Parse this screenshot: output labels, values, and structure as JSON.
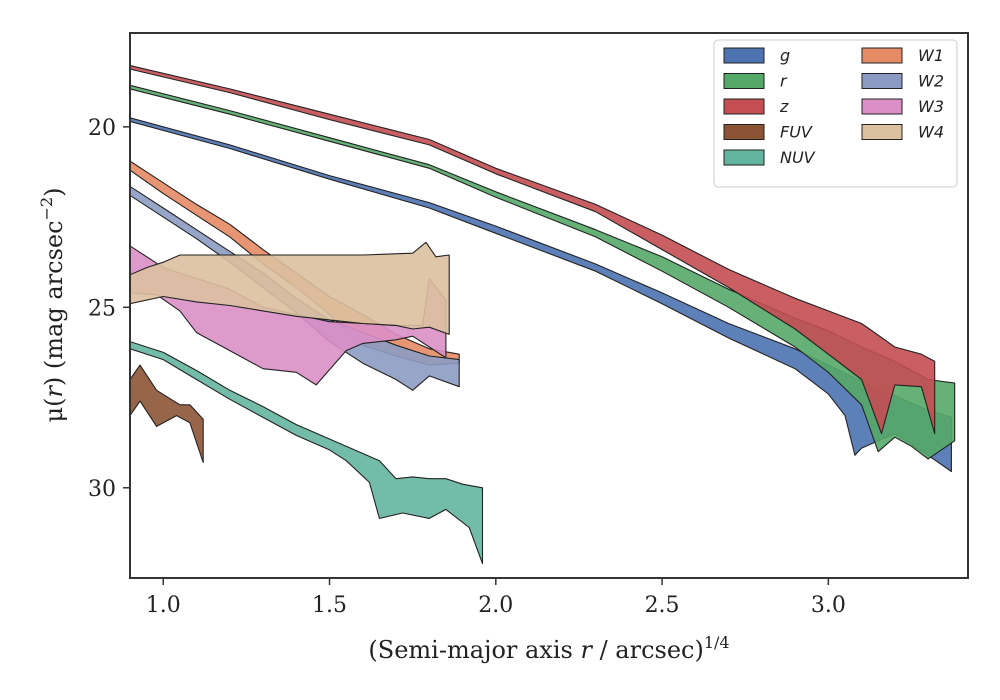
{
  "chart_data": {
    "type": "area",
    "xlabel_main": "(Semi-major axis ",
    "xlabel_var": "r",
    "xlabel_rest": " / arcsec)",
    "xlabel_sup": "1/4",
    "ylabel_main": "μ(",
    "ylabel_var": "r",
    "ylabel_rest": ") (mag arcsec",
    "ylabel_sup": "−2",
    "ylabel_end": ")",
    "xlim": [
      0.9,
      3.42
    ],
    "ylim": [
      32.5,
      17.4
    ],
    "xticks": [
      1.0,
      1.5,
      2.0,
      2.5,
      3.0
    ],
    "xtick_labels": [
      "1.0",
      "1.5",
      "2.0",
      "2.5",
      "3.0"
    ],
    "yticks": [
      20,
      25,
      30
    ],
    "ytick_labels": [
      "20",
      "25",
      "30"
    ],
    "legend_position": "top-right",
    "legend_columns": 2,
    "series": [
      {
        "name": "g",
        "color": "#4c72b0",
        "upper": [
          [
            0.9,
            19.75
          ],
          [
            1.2,
            20.5
          ],
          [
            1.5,
            21.35
          ],
          [
            1.8,
            22.1
          ],
          [
            2.0,
            22.75
          ],
          [
            2.3,
            23.8
          ],
          [
            2.5,
            24.6
          ],
          [
            2.7,
            25.45
          ],
          [
            2.9,
            26.15
          ],
          [
            3.0,
            26.6
          ],
          [
            3.1,
            27.05
          ],
          [
            3.2,
            27.45
          ],
          [
            3.3,
            27.85
          ],
          [
            3.37,
            28.05
          ]
        ],
        "lower": [
          [
            3.37,
            29.55
          ],
          [
            3.3,
            29.1
          ],
          [
            3.2,
            28.5
          ],
          [
            3.1,
            28.9
          ],
          [
            3.08,
            29.1
          ],
          [
            3.05,
            28.0
          ],
          [
            3.0,
            27.4
          ],
          [
            2.9,
            26.7
          ],
          [
            2.7,
            25.85
          ],
          [
            2.5,
            24.9
          ],
          [
            2.3,
            24.0
          ],
          [
            2.0,
            22.95
          ],
          [
            1.8,
            22.25
          ],
          [
            1.5,
            21.45
          ],
          [
            1.2,
            20.6
          ],
          [
            0.9,
            19.85
          ]
        ]
      },
      {
        "name": "r",
        "color": "#55a868",
        "upper": [
          [
            0.9,
            18.85
          ],
          [
            1.2,
            19.55
          ],
          [
            1.5,
            20.3
          ],
          [
            1.8,
            21.05
          ],
          [
            2.0,
            21.8
          ],
          [
            2.3,
            22.85
          ],
          [
            2.5,
            23.6
          ],
          [
            2.7,
            24.5
          ],
          [
            2.9,
            25.3
          ],
          [
            3.0,
            25.65
          ],
          [
            3.1,
            26.1
          ],
          [
            3.2,
            26.5
          ],
          [
            3.3,
            27.0
          ],
          [
            3.38,
            27.1
          ]
        ],
        "lower": [
          [
            3.38,
            28.7
          ],
          [
            3.3,
            29.2
          ],
          [
            3.25,
            28.85
          ],
          [
            3.2,
            28.6
          ],
          [
            3.15,
            29.0
          ],
          [
            3.1,
            27.7
          ],
          [
            3.0,
            26.8
          ],
          [
            2.9,
            26.1
          ],
          [
            2.7,
            25.0
          ],
          [
            2.5,
            24.0
          ],
          [
            2.3,
            23.05
          ],
          [
            2.0,
            21.95
          ],
          [
            1.8,
            21.15
          ],
          [
            1.5,
            20.4
          ],
          [
            1.2,
            19.65
          ],
          [
            0.9,
            18.95
          ]
        ]
      },
      {
        "name": "z",
        "color": "#c44e52",
        "upper": [
          [
            0.9,
            18.3
          ],
          [
            1.2,
            18.95
          ],
          [
            1.5,
            19.65
          ],
          [
            1.8,
            20.35
          ],
          [
            2.0,
            21.15
          ],
          [
            2.3,
            22.15
          ],
          [
            2.5,
            23.0
          ],
          [
            2.7,
            23.95
          ],
          [
            2.9,
            24.75
          ],
          [
            3.0,
            25.1
          ],
          [
            3.1,
            25.45
          ],
          [
            3.2,
            26.1
          ],
          [
            3.28,
            26.3
          ],
          [
            3.32,
            26.5
          ]
        ],
        "lower": [
          [
            3.32,
            28.5
          ],
          [
            3.28,
            27.2
          ],
          [
            3.2,
            27.15
          ],
          [
            3.16,
            28.5
          ],
          [
            3.1,
            27.0
          ],
          [
            3.0,
            26.3
          ],
          [
            2.9,
            25.6
          ],
          [
            2.7,
            24.45
          ],
          [
            2.5,
            23.4
          ],
          [
            2.3,
            22.35
          ],
          [
            2.0,
            21.3
          ],
          [
            1.8,
            20.5
          ],
          [
            1.5,
            19.8
          ],
          [
            1.2,
            19.05
          ],
          [
            0.9,
            18.4
          ]
        ]
      },
      {
        "name": "FUV",
        "color": "#8c5435",
        "upper": [
          [
            0.9,
            27.0
          ],
          [
            0.93,
            26.6
          ],
          [
            0.98,
            27.3
          ],
          [
            1.05,
            27.7
          ],
          [
            1.08,
            27.7
          ],
          [
            1.12,
            28.1
          ]
        ],
        "lower": [
          [
            1.12,
            29.3
          ],
          [
            1.08,
            28.2
          ],
          [
            1.04,
            28.0
          ],
          [
            0.98,
            28.3
          ],
          [
            0.93,
            27.6
          ],
          [
            0.9,
            28.0
          ]
        ]
      },
      {
        "name": "NUV",
        "color": "#64b5a0",
        "upper": [
          [
            0.9,
            25.95
          ],
          [
            1.0,
            26.25
          ],
          [
            1.1,
            26.75
          ],
          [
            1.2,
            27.3
          ],
          [
            1.3,
            27.75
          ],
          [
            1.4,
            28.25
          ],
          [
            1.5,
            28.65
          ],
          [
            1.6,
            29.05
          ],
          [
            1.65,
            29.25
          ],
          [
            1.7,
            29.75
          ],
          [
            1.75,
            29.7
          ],
          [
            1.8,
            29.75
          ],
          [
            1.85,
            29.75
          ],
          [
            1.9,
            29.9
          ],
          [
            1.96,
            30.0
          ]
        ],
        "lower": [
          [
            1.96,
            32.1
          ],
          [
            1.92,
            31.1
          ],
          [
            1.85,
            30.6
          ],
          [
            1.8,
            30.85
          ],
          [
            1.72,
            30.7
          ],
          [
            1.65,
            30.85
          ],
          [
            1.62,
            29.85
          ],
          [
            1.55,
            29.25
          ],
          [
            1.5,
            28.95
          ],
          [
            1.4,
            28.55
          ],
          [
            1.3,
            28.05
          ],
          [
            1.2,
            27.55
          ],
          [
            1.1,
            27.0
          ],
          [
            1.0,
            26.45
          ],
          [
            0.9,
            26.15
          ]
        ]
      },
      {
        "name": "W1",
        "color": "#e58a65",
        "upper": [
          [
            0.9,
            20.95
          ],
          [
            1.0,
            21.55
          ],
          [
            1.1,
            22.15
          ],
          [
            1.2,
            22.7
          ],
          [
            1.3,
            23.4
          ],
          [
            1.4,
            24.05
          ],
          [
            1.5,
            24.7
          ],
          [
            1.6,
            25.2
          ],
          [
            1.7,
            25.75
          ],
          [
            1.8,
            26.15
          ],
          [
            1.89,
            26.3
          ]
        ],
        "lower": [
          [
            1.89,
            26.55
          ],
          [
            1.8,
            26.6
          ],
          [
            1.7,
            26.35
          ],
          [
            1.6,
            26.05
          ],
          [
            1.5,
            25.2
          ],
          [
            1.4,
            24.45
          ],
          [
            1.3,
            23.8
          ],
          [
            1.2,
            23.05
          ],
          [
            1.1,
            22.45
          ],
          [
            1.0,
            21.85
          ],
          [
            0.9,
            21.2
          ]
        ]
      },
      {
        "name": "W2",
        "color": "#8c9bc3",
        "upper": [
          [
            0.9,
            21.65
          ],
          [
            1.0,
            22.25
          ],
          [
            1.1,
            22.85
          ],
          [
            1.2,
            23.45
          ],
          [
            1.3,
            24.05
          ],
          [
            1.4,
            24.75
          ],
          [
            1.5,
            25.35
          ],
          [
            1.6,
            25.7
          ],
          [
            1.7,
            26.05
          ],
          [
            1.8,
            26.35
          ],
          [
            1.89,
            26.45
          ]
        ],
        "lower": [
          [
            1.89,
            27.2
          ],
          [
            1.8,
            26.9
          ],
          [
            1.75,
            27.3
          ],
          [
            1.7,
            27.0
          ],
          [
            1.6,
            26.55
          ],
          [
            1.5,
            25.95
          ],
          [
            1.4,
            25.15
          ],
          [
            1.3,
            24.45
          ],
          [
            1.2,
            23.75
          ],
          [
            1.1,
            23.1
          ],
          [
            1.0,
            22.5
          ],
          [
            0.9,
            21.9
          ]
        ]
      },
      {
        "name": "W3",
        "color": "#dc8fc6",
        "upper": [
          [
            0.9,
            23.3
          ],
          [
            1.0,
            23.9
          ],
          [
            1.1,
            24.2
          ],
          [
            1.2,
            24.5
          ],
          [
            1.3,
            25.0
          ],
          [
            1.4,
            25.2
          ],
          [
            1.5,
            25.4
          ],
          [
            1.6,
            25.45
          ],
          [
            1.7,
            25.5
          ],
          [
            1.78,
            25.5
          ],
          [
            1.8,
            24.2
          ],
          [
            1.85,
            24.8
          ]
        ],
        "lower": [
          [
            1.85,
            26.4
          ],
          [
            1.8,
            26.1
          ],
          [
            1.75,
            25.8
          ],
          [
            1.7,
            25.9
          ],
          [
            1.6,
            26.0
          ],
          [
            1.55,
            26.2
          ],
          [
            1.46,
            27.15
          ],
          [
            1.4,
            26.8
          ],
          [
            1.3,
            26.7
          ],
          [
            1.2,
            26.2
          ],
          [
            1.1,
            25.7
          ],
          [
            1.05,
            25.1
          ],
          [
            0.98,
            24.65
          ],
          [
            0.9,
            24.6
          ]
        ]
      },
      {
        "name": "W4",
        "color": "#dcc0a0",
        "upper": [
          [
            0.9,
            24.1
          ],
          [
            0.95,
            23.9
          ],
          [
            1.0,
            23.75
          ],
          [
            1.05,
            23.55
          ],
          [
            1.2,
            23.55
          ],
          [
            1.4,
            23.55
          ],
          [
            1.6,
            23.55
          ],
          [
            1.75,
            23.5
          ],
          [
            1.79,
            23.2
          ],
          [
            1.82,
            23.6
          ],
          [
            1.86,
            23.55
          ]
        ],
        "lower": [
          [
            1.86,
            25.75
          ],
          [
            1.8,
            25.55
          ],
          [
            1.75,
            25.6
          ],
          [
            1.7,
            25.5
          ],
          [
            1.6,
            25.45
          ],
          [
            1.5,
            25.35
          ],
          [
            1.4,
            25.25
          ],
          [
            1.3,
            25.1
          ],
          [
            1.2,
            24.95
          ],
          [
            1.1,
            24.85
          ],
          [
            1.0,
            24.7
          ],
          [
            0.9,
            24.9
          ]
        ]
      }
    ]
  }
}
